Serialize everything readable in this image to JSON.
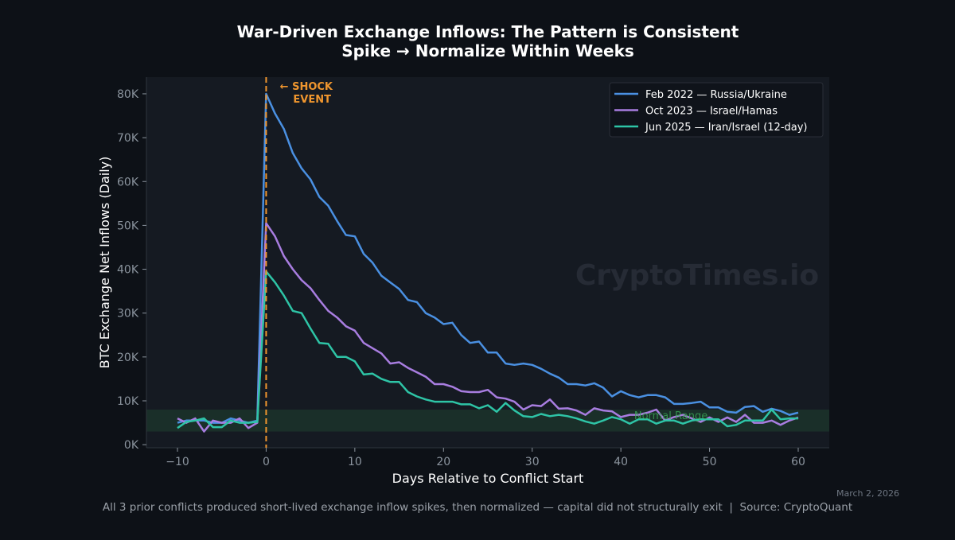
{
  "chart_data": {
    "type": "line",
    "title": "War-Driven Exchange Inflows: The Pattern is Consistent",
    "subtitle": "Spike → Normalize Within Weeks",
    "xlabel": "Days Relative to Conflict Start",
    "ylabel": "BTC Exchange Net Inflows (Daily)",
    "xlim": [
      -13.5,
      63.5
    ],
    "ylim": [
      -700,
      83800
    ],
    "xticks": [
      -10,
      0,
      10,
      20,
      30,
      40,
      50,
      60
    ],
    "xtick_labels": [
      "−10",
      "0",
      "10",
      "20",
      "30",
      "40",
      "50",
      "60"
    ],
    "yticks": [
      0,
      10000,
      20000,
      30000,
      40000,
      50000,
      60000,
      70000,
      80000
    ],
    "ytick_labels": [
      "0K",
      "10K",
      "20K",
      "30K",
      "40K",
      "50K",
      "60K",
      "70K",
      "80K"
    ],
    "grid": false,
    "legend_position": "top-right",
    "x_start": -10,
    "series": [
      {
        "name": "Feb 2022 — Russia/Ukraine",
        "color": "#4a90e2",
        "values": [
          5000,
          5500,
          5500,
          5500,
          5000,
          5000,
          6000,
          5500,
          5000,
          5500,
          80000,
          75500,
          72000,
          66500,
          63000,
          60500,
          56500,
          54500,
          51000,
          47800,
          47500,
          43500,
          41500,
          38500,
          37000,
          35500,
          33000,
          32500,
          30000,
          29000,
          27500,
          27800,
          25000,
          23200,
          23500,
          21000,
          21000,
          18500,
          18200,
          18500,
          18200,
          17300,
          16200,
          15300,
          13800,
          13800,
          13500,
          14000,
          13000,
          11000,
          12200,
          11300,
          10800,
          11300,
          11300,
          10800,
          9300,
          9300,
          9500,
          9800,
          8500,
          8500,
          7500,
          7300,
          8600,
          8800,
          7500,
          8200,
          7700,
          6800,
          7300
        ]
      },
      {
        "name": "Oct 2023 — Israel/Hamas",
        "color": "#a87de0",
        "values": [
          6000,
          5000,
          6000,
          3000,
          5500,
          5000,
          5000,
          6000,
          3800,
          5000,
          50500,
          47500,
          43000,
          40000,
          37500,
          35700,
          33000,
          30500,
          29000,
          27000,
          26000,
          23200,
          22000,
          20800,
          18500,
          18800,
          17500,
          16500,
          15500,
          13800,
          13800,
          13200,
          12200,
          12000,
          12000,
          12500,
          10800,
          10500,
          9800,
          8000,
          9000,
          8800,
          10300,
          8200,
          8300,
          7800,
          6800,
          8300,
          7800,
          7600,
          6300,
          6800,
          6800,
          7300,
          8000,
          5500,
          6300,
          6800,
          6000,
          5200,
          6200,
          5200,
          6200,
          5200,
          6800,
          5000,
          5000,
          5500,
          4500,
          5500,
          6200
        ]
      },
      {
        "name": "Jun 2025 — Iran/Israel (12-day)",
        "color": "#2ec4a6",
        "values": [
          3800,
          5200,
          5500,
          6000,
          4000,
          4000,
          5500,
          5000,
          5000,
          5200,
          39500,
          37000,
          34000,
          30500,
          30000,
          26500,
          23200,
          23000,
          20000,
          20000,
          19000,
          16000,
          16200,
          15000,
          14300,
          14300,
          12000,
          11000,
          10300,
          9800,
          9800,
          9800,
          9200,
          9200,
          8300,
          9000,
          7500,
          9500,
          7800,
          6500,
          6300,
          7000,
          6500,
          6800,
          6500,
          6000,
          5300,
          4800,
          5500,
          6300,
          5800,
          4800,
          5800,
          5800,
          4800,
          5500,
          5500,
          4800,
          5500,
          5800,
          5800,
          5800,
          4200,
          4500,
          5500,
          5500,
          5500,
          8000,
          5800,
          6000,
          6000
        ]
      }
    ],
    "annotations": {
      "shock_event": {
        "x": 0,
        "label_line1": "← SHOCK",
        "label_line2": "EVENT",
        "color": "#f0962e"
      },
      "normal_range": {
        "y_range": [
          3000,
          8000
        ],
        "label": "Normal Range",
        "color": "#3aa856"
      }
    },
    "watermark": "CryptoTimes.io",
    "date": "March 2, 2026",
    "footer": "All 3 prior conflicts produced short-lived exchange inflow spikes, then normalized — capital did not structurally exit  |  Source: CryptoQuant"
  }
}
